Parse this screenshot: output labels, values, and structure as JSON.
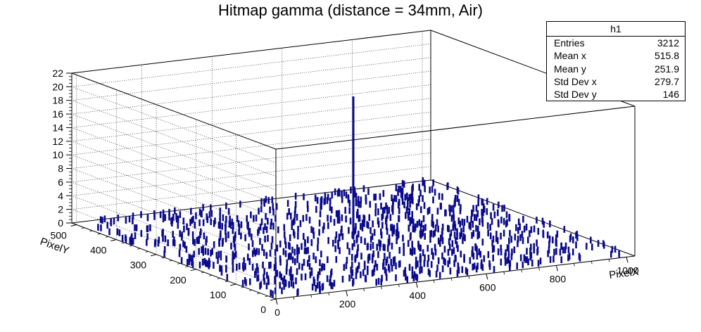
{
  "title": "Hitmap gamma (distance = 34mm, Air)",
  "stats": {
    "name": "h1",
    "rows": [
      {
        "label": "Entries",
        "value": "3212"
      },
      {
        "label": "Mean x",
        "value": "515.8"
      },
      {
        "label": "Mean y",
        "value": "251.9"
      },
      {
        "label": "Std Dev x",
        "value": "279.7"
      },
      {
        "label": "Std Dev y",
        "value": "146"
      }
    ]
  },
  "chart_data": {
    "type": "lego",
    "title": "Hitmap gamma (distance = 34mm, Air)",
    "xlabel": "PixelX",
    "ylabel": "PixelY",
    "zlabel": "",
    "xlim": [
      0,
      1024
    ],
    "ylim": [
      0,
      512
    ],
    "zlim": [
      0,
      22
    ],
    "x_ticks": [
      "0",
      "200",
      "400",
      "600",
      "800",
      "1000"
    ],
    "y_ticks": [
      "0",
      "100",
      "200",
      "300",
      "400",
      "500"
    ],
    "z_ticks": [
      "0",
      "2",
      "4",
      "6",
      "8",
      "10",
      "12",
      "14",
      "16",
      "18",
      "20",
      "22"
    ],
    "bar_color": "#0a0a8c",
    "typical_height": 1,
    "hot_pixel": {
      "x": 512,
      "y": 256,
      "z": 21
    },
    "grid": true,
    "entries": 3212,
    "mean_x": 515.8,
    "mean_y": 251.9,
    "std_x": 279.7,
    "std_y": 146
  }
}
